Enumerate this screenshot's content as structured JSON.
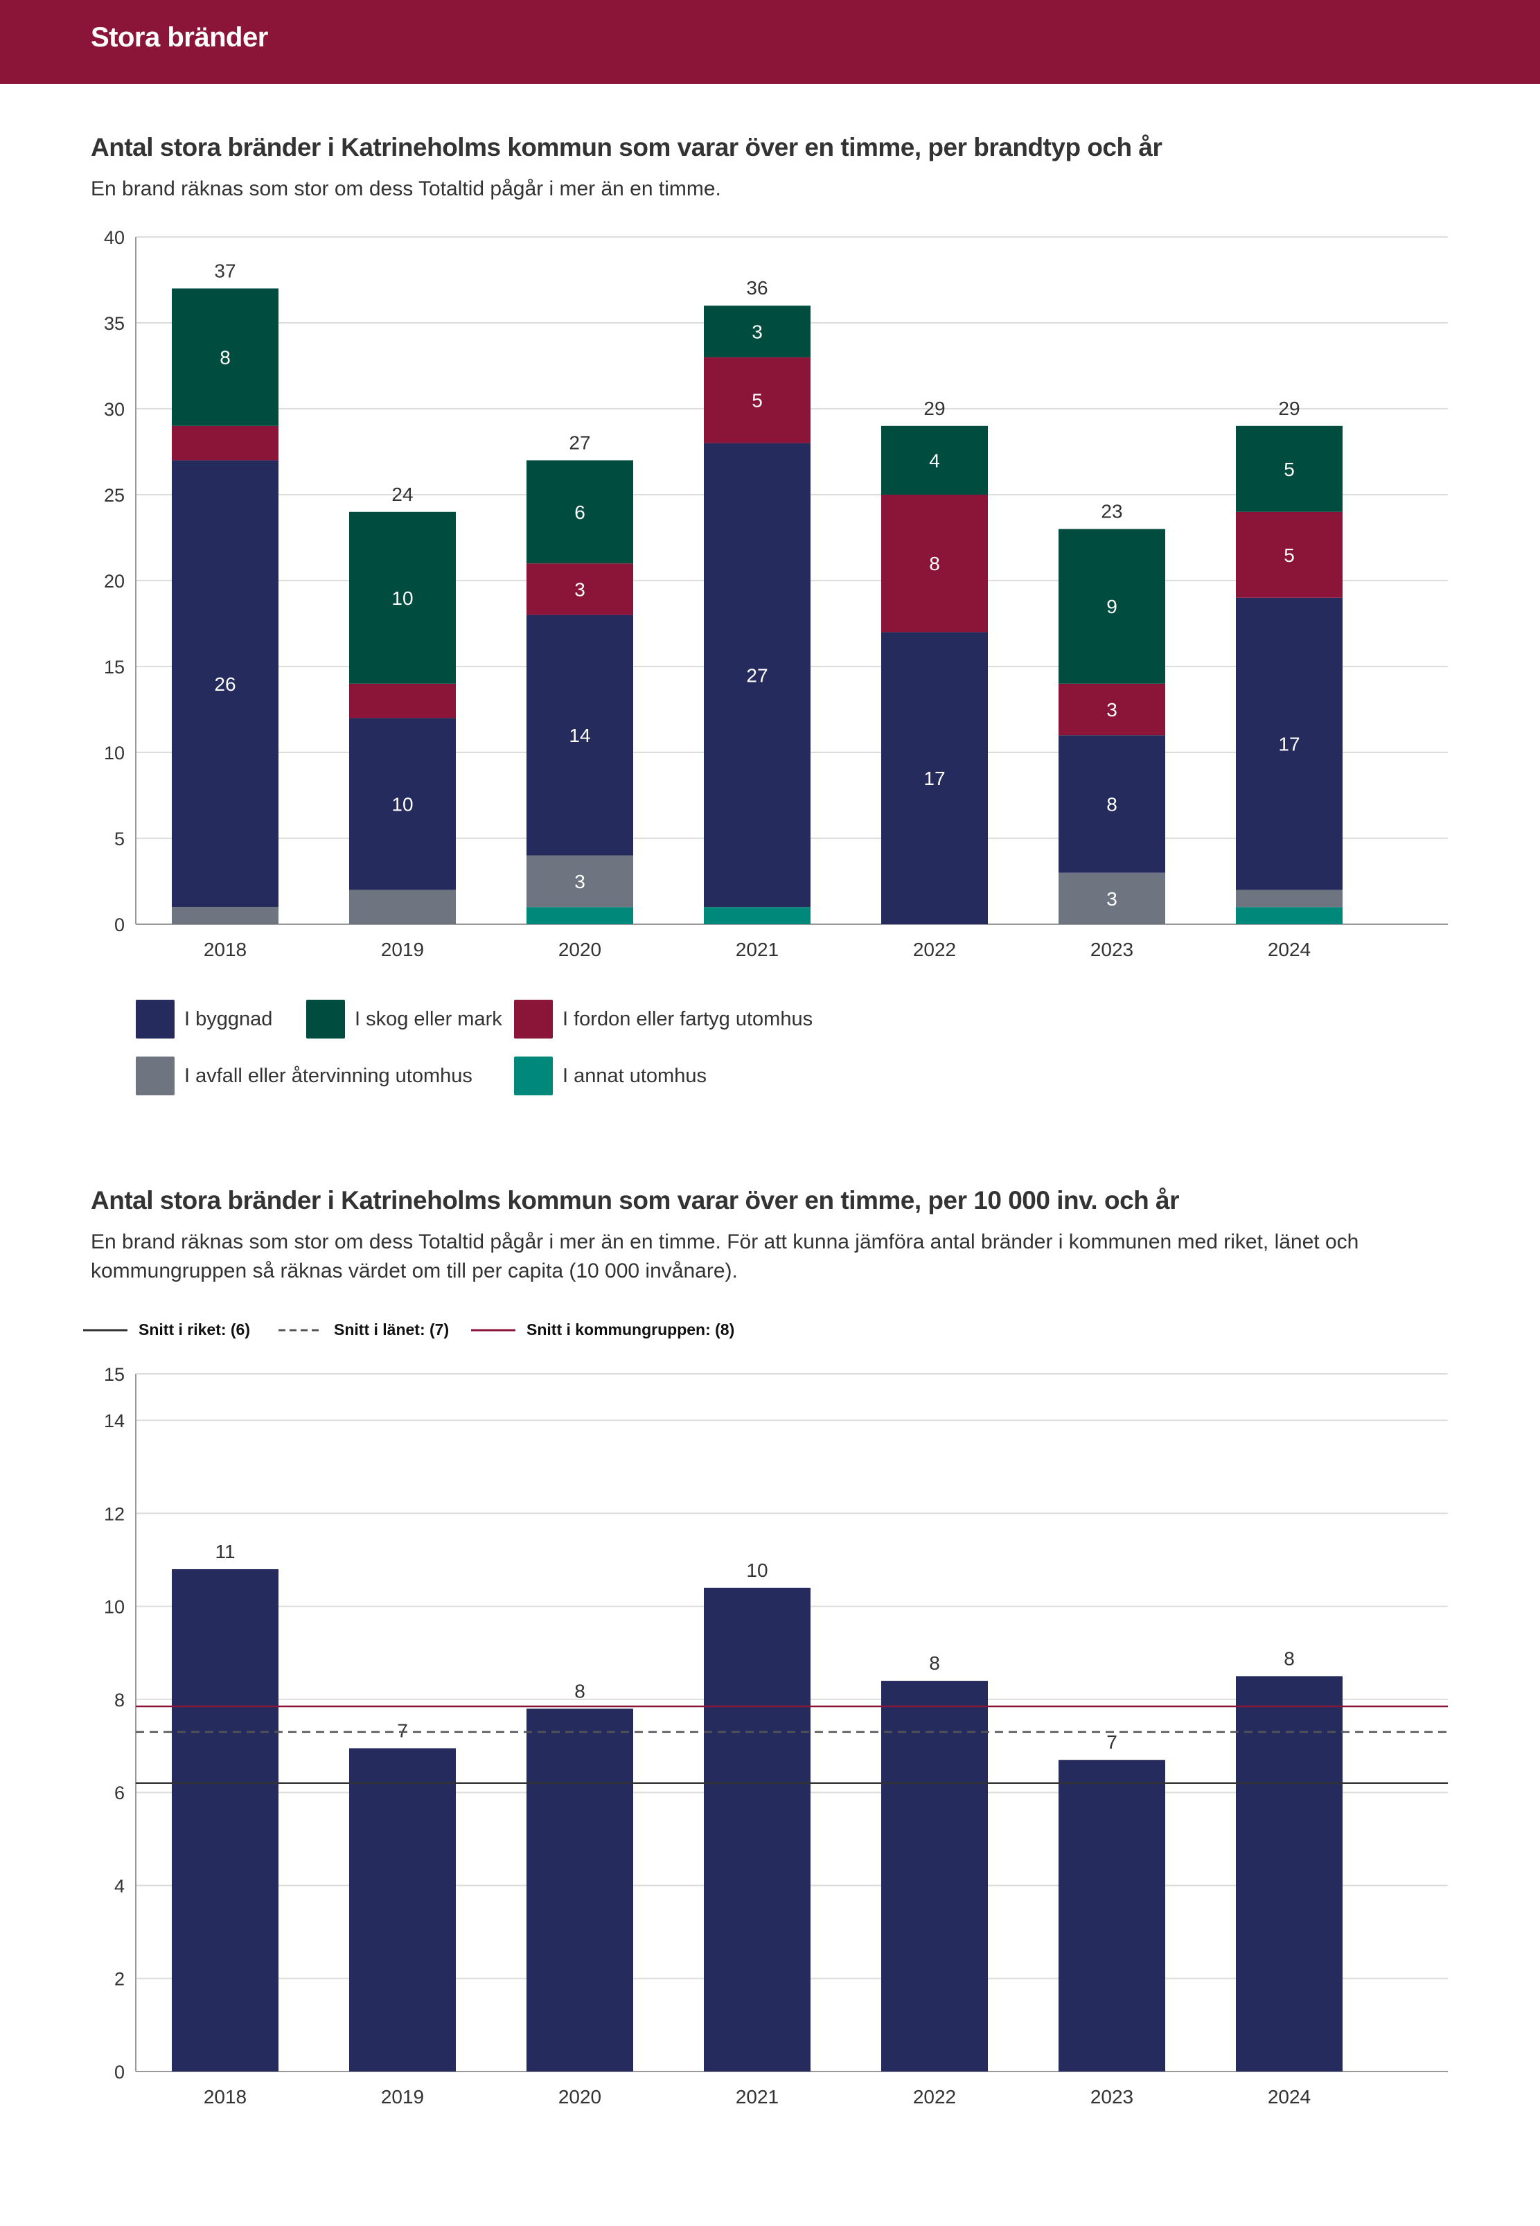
{
  "header": {
    "title": "Stora bränder"
  },
  "colors": {
    "banner": "#8b1538",
    "byggnad": "#252b5c",
    "skog": "#004d40",
    "fordon": "#8b1538",
    "avfall": "#6e7480",
    "annat": "#00897b",
    "riket": "#333333",
    "lanet": "#555555",
    "kommungruppen": "#8b1538"
  },
  "chart1": {
    "title": "Antal stora bränder i Katrineholms kommun som varar över en timme, per brandtyp och år",
    "subtitle": "En brand räknas som stor om dess Totaltid pågår i mer än en timme."
  },
  "chart2": {
    "title": "Antal stora bränder i Katrineholms kommun som varar över en timme, per 10 000 inv. och år",
    "subtitle": "En brand räknas som stor om dess Totaltid pågår i mer än en timme. För att kunna jämföra antal bränder i kommunen med riket, länet och kommungruppen så räknas värdet om till per capita (10 000 invånare)."
  },
  "chart_data": [
    {
      "type": "bar",
      "stacked": true,
      "categories": [
        "2018",
        "2019",
        "2020",
        "2021",
        "2022",
        "2023",
        "2024"
      ],
      "series": [
        {
          "name": "I annat utomhus",
          "color": "#00897b",
          "values": [
            0,
            0,
            1,
            1,
            0,
            0,
            1
          ],
          "labels": [
            "",
            "",
            "",
            "",
            "",
            "",
            ""
          ]
        },
        {
          "name": "I avfall eller återvinning utomhus",
          "color": "#6e7480",
          "values": [
            1,
            2,
            3,
            0,
            0,
            3,
            1
          ],
          "labels": [
            "",
            "",
            "3",
            "",
            "",
            "3",
            ""
          ]
        },
        {
          "name": "I byggnad",
          "color": "#252b5c",
          "values": [
            26,
            10,
            14,
            27,
            17,
            8,
            17
          ],
          "labels": [
            "26",
            "10",
            "14",
            "27",
            "17",
            "8",
            "17"
          ]
        },
        {
          "name": "I fordon eller fartyg utomhus",
          "color": "#8b1538",
          "values": [
            2,
            2,
            3,
            5,
            8,
            3,
            5
          ],
          "labels": [
            "",
            "",
            "3",
            "5",
            "8",
            "3",
            "5"
          ]
        },
        {
          "name": "I skog eller mark",
          "color": "#004d40",
          "values": [
            8,
            10,
            6,
            3,
            4,
            9,
            5
          ],
          "labels": [
            "8",
            "10",
            "6",
            "3",
            "4",
            "9",
            "5"
          ]
        }
      ],
      "totals": [
        "37",
        "24",
        "27",
        "36",
        "29",
        "23",
        "29"
      ],
      "legend_order": [
        "I byggnad",
        "I skog eller mark",
        "I fordon eller fartyg utomhus",
        "I avfall eller återvinning utomhus",
        "I annat utomhus"
      ],
      "yticks": [
        "0",
        "5",
        "10",
        "15",
        "20",
        "25",
        "30",
        "35",
        "40"
      ],
      "ylim": [
        0,
        40
      ],
      "grid": true,
      "legend_position": "bottom"
    },
    {
      "type": "bar",
      "categories": [
        "2018",
        "2019",
        "2020",
        "2021",
        "2022",
        "2023",
        "2024"
      ],
      "values": [
        10.8,
        6.95,
        7.8,
        10.4,
        8.4,
        6.7,
        8.5
      ],
      "labels": [
        "11",
        "7",
        "8",
        "10",
        "8",
        "7",
        "8"
      ],
      "color": "#252b5c",
      "yticks": [
        "0",
        "2",
        "4",
        "6",
        "8",
        "10",
        "12",
        "14",
        "15"
      ],
      "ylim": [
        0,
        15
      ],
      "grid": true,
      "reference_lines": [
        {
          "name": "Snitt i riket: (6)",
          "value": 6.2,
          "style": "solid",
          "color": "#333333"
        },
        {
          "name": "Snitt i länet: (7)",
          "value": 7.3,
          "style": "dashed",
          "color": "#555555"
        },
        {
          "name": "Snitt i kommungruppen: (8)",
          "value": 7.85,
          "style": "solid",
          "color": "#8b1538"
        }
      ],
      "legend_position": "top-left"
    }
  ]
}
